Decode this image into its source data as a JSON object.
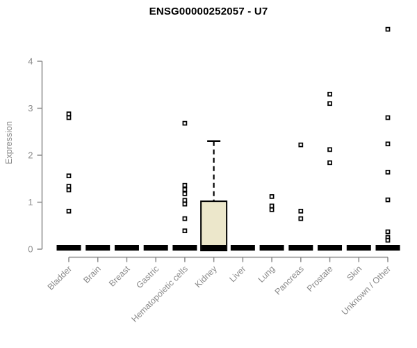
{
  "chart_data": {
    "type": "boxplot",
    "title": "ENSG00000252057 - U7",
    "xlabel": "",
    "ylabel": "Expression",
    "yticks": [
      0,
      1,
      2,
      3,
      4
    ],
    "ylim": [
      0,
      4.8
    ],
    "grid": false,
    "legend": false,
    "categories": [
      "Bladder",
      "Brain",
      "Breast",
      "Gastric",
      "Hematopoietic cells",
      "Kidney",
      "Liver",
      "Lung",
      "Pancreas",
      "Prostate",
      "Skin",
      "Unknown / Other"
    ],
    "series": [
      {
        "category": "Bladder",
        "median": 0,
        "q1": 0,
        "q3": 0,
        "whisker_low": 0,
        "whisker_high": 0,
        "outliers": [
          2.88,
          2.8,
          1.56,
          1.34,
          1.26,
          0.81
        ]
      },
      {
        "category": "Brain",
        "median": 0,
        "q1": 0,
        "q3": 0,
        "whisker_low": 0,
        "whisker_high": 0,
        "outliers": []
      },
      {
        "category": "Breast",
        "median": 0,
        "q1": 0,
        "q3": 0,
        "whisker_low": 0,
        "whisker_high": 0,
        "outliers": []
      },
      {
        "category": "Gastric",
        "median": 0,
        "q1": 0,
        "q3": 0,
        "whisker_low": 0,
        "whisker_high": 0,
        "outliers": []
      },
      {
        "category": "Hematopoietic cells",
        "median": 0,
        "q1": 0,
        "q3": 0,
        "whisker_low": 0,
        "whisker_high": 0,
        "outliers": [
          2.68,
          1.36,
          1.27,
          1.18,
          1.04,
          0.96,
          0.65,
          0.39
        ]
      },
      {
        "category": "Kidney",
        "median": 0,
        "q1": 0,
        "q3": 1.02,
        "whisker_low": 0,
        "whisker_high": 2.3,
        "outliers": []
      },
      {
        "category": "Liver",
        "median": 0,
        "q1": 0,
        "q3": 0,
        "whisker_low": 0,
        "whisker_high": 0,
        "outliers": []
      },
      {
        "category": "Lung",
        "median": 0,
        "q1": 0,
        "q3": 0,
        "whisker_low": 0,
        "whisker_high": 0,
        "outliers": [
          1.12,
          0.92,
          0.84
        ]
      },
      {
        "category": "Pancreas",
        "median": 0,
        "q1": 0,
        "q3": 0,
        "whisker_low": 0,
        "whisker_high": 0,
        "outliers": [
          2.22,
          0.81,
          0.65
        ]
      },
      {
        "category": "Prostate",
        "median": 0,
        "q1": 0,
        "q3": 0,
        "whisker_low": 0,
        "whisker_high": 0,
        "outliers": [
          3.3,
          3.1,
          2.12,
          1.84
        ]
      },
      {
        "category": "Skin",
        "median": 0,
        "q1": 0,
        "q3": 0,
        "whisker_low": 0,
        "whisker_high": 0,
        "outliers": []
      },
      {
        "category": "Unknown / Other",
        "median": 0,
        "q1": 0,
        "q3": 0,
        "whisker_low": 0,
        "whisker_high": 0,
        "outliers": [
          4.68,
          2.8,
          2.24,
          1.64,
          1.05,
          0.37,
          0.25,
          0.19
        ]
      }
    ],
    "colors": {
      "box_fill": "#ece7cb",
      "box_stroke": "#000000",
      "zero_bar": "#000000",
      "outlier_stroke": "#000000",
      "outlier_fill": "#ffffff",
      "axis": "#8a8a8a",
      "tick_label": "#8a8a8a",
      "title": "#000000"
    }
  }
}
